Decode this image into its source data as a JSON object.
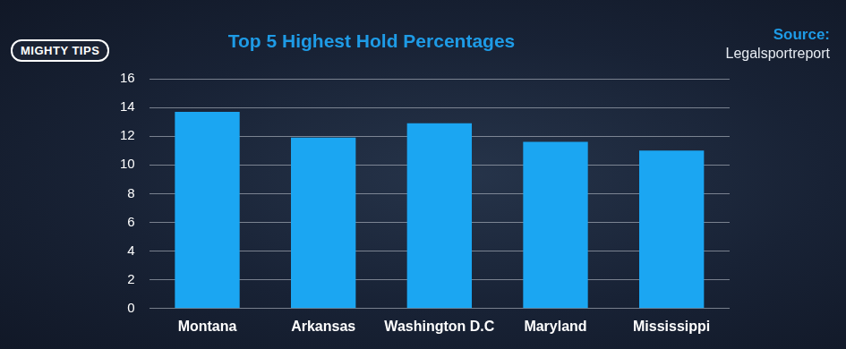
{
  "chart_data": {
    "type": "bar",
    "title": "Top 5 Highest Hold Percentages",
    "source_title": "Source:",
    "source": "Legalsportreport",
    "logo": "MIGHTY TIPS",
    "categories": [
      "Montana",
      "Arkansas",
      "Washington D.C",
      "Maryland",
      "Mississippi"
    ],
    "values": [
      13.7,
      11.9,
      12.9,
      11.6,
      11.0
    ],
    "color": "#1ba6f2",
    "ylim": [
      0,
      16
    ],
    "yticks": [
      0,
      2,
      4,
      6,
      8,
      10,
      12,
      14,
      16
    ],
    "grid": true
  }
}
